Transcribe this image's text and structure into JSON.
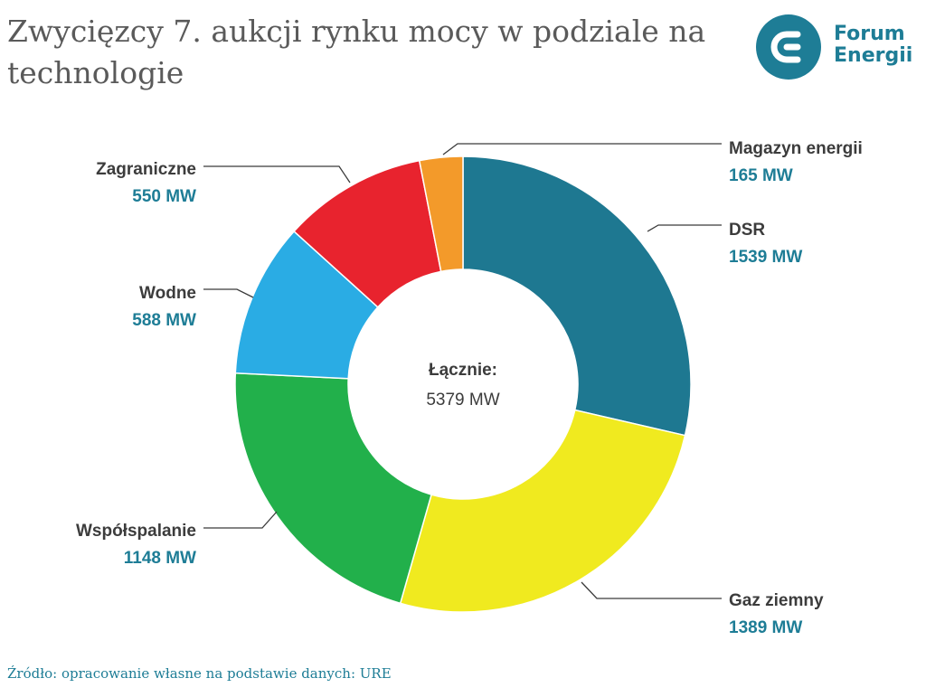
{
  "title": "Zwycięzcy 7. aukcji rynku mocy w podziale na technologie",
  "logo": {
    "line1": "Forum",
    "line2": "Energii",
    "color": "#1e7d96"
  },
  "source": "Źródło: opracowanie własne na podstawie danych: URE",
  "center": {
    "label": "Łącznie:",
    "value": "5379 MW"
  },
  "colors": {
    "value_text": "#1e7d96",
    "label_text": "#3c3c3c",
    "leader": "#3a3a3a"
  },
  "chart_data": {
    "type": "pie",
    "unit": "MW",
    "total": 5379,
    "slices": [
      {
        "name": "DSR",
        "value": 1539,
        "label": "1539 MW",
        "color": "#1e7891"
      },
      {
        "name": "Gaz ziemny",
        "value": 1389,
        "label": "1389 MW",
        "color": "#f0ea1f"
      },
      {
        "name": "Współspalanie",
        "value": 1148,
        "label": "1148 MW",
        "color": "#22b04b"
      },
      {
        "name": "Wodne",
        "value": 588,
        "label": "588 MW",
        "color": "#2aace4"
      },
      {
        "name": "Zagraniczne",
        "value": 550,
        "label": "550 MW",
        "color": "#e8232e"
      },
      {
        "name": "Magazyn energii",
        "value": 165,
        "label": "165 MW",
        "color": "#f39a2a"
      }
    ]
  }
}
